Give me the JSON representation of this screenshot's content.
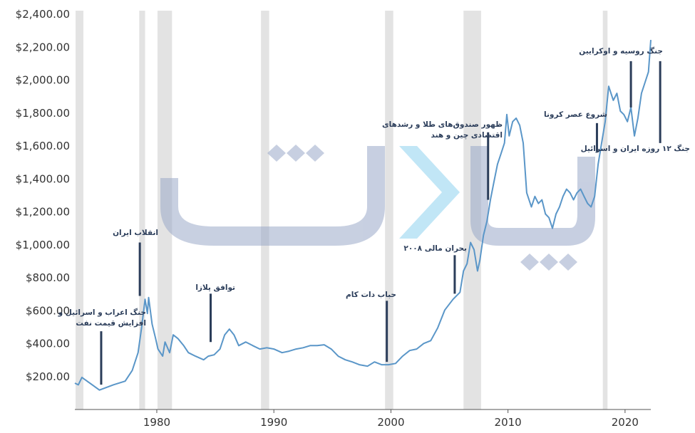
{
  "chart_data": {
    "type": "line",
    "color": "#5a96c8",
    "xlim": [
      1973,
      2022.2
    ],
    "xticks": [
      1980,
      1990,
      2000,
      2010,
      2020
    ],
    "ylim": [
      0,
      2400
    ],
    "yticks": [
      {
        "value": 200,
        "label": "$200.00"
      },
      {
        "value": 400,
        "label": "$400.00"
      },
      {
        "value": 600,
        "label": "$600.00"
      },
      {
        "value": 800,
        "label": "$800.00"
      },
      {
        "value": 1000,
        "label": "$1,000.00"
      },
      {
        "value": 1200,
        "label": "$1,200.00"
      },
      {
        "value": 1400,
        "label": "$1,400.00"
      },
      {
        "value": 1600,
        "label": "$1,600.00"
      },
      {
        "value": 1800,
        "label": "$1,800.00"
      },
      {
        "value": 2000,
        "label": "$2,000.00"
      },
      {
        "value": 2200,
        "label": "$2,200.00"
      },
      {
        "value": 2400,
        "label": "$2,400.00"
      }
    ],
    "shaded_ranges": [
      [
        1973.06,
        1973.73
      ],
      [
        1978.5,
        1979.0
      ],
      [
        1980.06,
        1981.3
      ],
      [
        1988.9,
        1989.6
      ],
      [
        1999.5,
        2000.2
      ],
      [
        2006.2,
        2007.7
      ],
      [
        2018.1,
        2018.5
      ]
    ],
    "x": [
      1973.0,
      1973.3,
      1973.6,
      1975.1,
      1976.3,
      1977.3,
      1977.9,
      1978.4,
      1978.7,
      1979.0,
      1979.2,
      1979.3,
      1979.6,
      1979.9,
      1980.1,
      1980.5,
      1980.7,
      1981.1,
      1981.4,
      1981.8,
      1982.3,
      1982.7,
      1983.3,
      1984.0,
      1984.4,
      1984.9,
      1985.4,
      1985.8,
      1986.2,
      1986.6,
      1987.0,
      1987.6,
      1988.2,
      1988.8,
      1989.4,
      1990.0,
      1990.7,
      1991.3,
      1991.9,
      1992.5,
      1993.1,
      1993.7,
      1994.3,
      1994.9,
      1995.5,
      1996.1,
      1996.7,
      1997.3,
      1998.0,
      1998.6,
      1999.2,
      1999.8,
      2000.4,
      2001.0,
      2001.6,
      2002.2,
      2002.8,
      2003.4,
      2004.0,
      2004.6,
      2005.3,
      2005.9,
      2006.2,
      2006.5,
      2006.8,
      2007.1,
      2007.4,
      2007.6,
      2007.9,
      2008.2,
      2008.5,
      2008.8,
      2009.1,
      2009.4,
      2009.7,
      2009.9,
      2010.1,
      2010.4,
      2010.7,
      2011.0,
      2011.3,
      2011.6,
      2012.0,
      2012.3,
      2012.6,
      2012.9,
      2013.2,
      2013.5,
      2013.8,
      2014.1,
      2014.4,
      2014.7,
      2015.0,
      2015.3,
      2015.6,
      2015.9,
      2016.2,
      2016.5,
      2016.8,
      2017.1,
      2017.4,
      2017.7,
      2018.0,
      2018.3,
      2018.6,
      2019.0,
      2019.3,
      2019.6,
      2019.9,
      2020.2,
      2020.5,
      2020.8,
      2021.1,
      2021.4,
      2021.7,
      2022.0,
      2022.2
    ],
    "values": [
      160,
      150,
      195,
      118,
      150,
      172,
      237,
      345,
      496,
      669,
      583,
      680,
      518,
      431,
      367,
      324,
      410,
      345,
      453,
      431,
      388,
      345,
      324,
      302,
      324,
      332,
      367,
      453,
      488,
      453,
      388,
      410,
      388,
      367,
      375,
      367,
      345,
      354,
      367,
      375,
      388,
      388,
      393,
      367,
      324,
      302,
      289,
      272,
      263,
      289,
      272,
      272,
      280,
      324,
      358,
      367,
      401,
      418,
      496,
      604,
      669,
      712,
      841,
      885,
      1014,
      971,
      841,
      906,
      1057,
      1143,
      1273,
      1381,
      1489,
      1553,
      1618,
      1791,
      1661,
      1748,
      1769,
      1726,
      1618,
      1316,
      1230,
      1294,
      1251,
      1273,
      1187,
      1165,
      1100,
      1187,
      1230,
      1294,
      1338,
      1316,
      1273,
      1316,
      1338,
      1294,
      1251,
      1230,
      1294,
      1489,
      1618,
      1748,
      1963,
      1877,
      1920,
      1812,
      1791,
      1748,
      1834,
      1661,
      1769,
      1920,
      1985,
      2050,
      2244
    ],
    "annotations": [
      {
        "lines": [
          "جنگ اعراب و اسرائیل و",
          "افزایش قیمت نفت"
        ],
        "x": 1975.25,
        "y1": 475,
        "y2": 151
      },
      {
        "lines": [
          "انقلاب ایران"
        ],
        "x": 1978.55,
        "y1": 1014,
        "y2": 690
      },
      {
        "lines": [
          "توافق پلازا"
        ],
        "x": 1984.6,
        "y1": 703,
        "y2": 410
      },
      {
        "lines": [
          "حباب دات کام"
        ],
        "x": 1999.65,
        "y1": 660,
        "y2": 289
      },
      {
        "lines": [
          "بحران مالی ۲۰۰۸"
        ],
        "x": 2005.45,
        "y1": 937,
        "y2": 703
      },
      {
        "lines": [
          "ظهور صندوق‌های طلا و رشدهای",
          "اقتصادی چین و هند"
        ],
        "x": 2008.3,
        "y1": 1683,
        "y2": 1273
      },
      {
        "lines": [
          "شروع عصر کرونا"
        ],
        "x": 2017.6,
        "y1": 1739,
        "y2": 1566
      },
      {
        "lines": [
          "جنگ روسیه و اوکرایین"
        ],
        "x": 2020.5,
        "y1": 2115,
        "y2": 1834
      },
      {
        "lines": [
          "جنگ ۱۲ روزه ایران و اسرائیل"
        ],
        "x": 2023.0,
        "y1": 2115,
        "y2": 1618
      }
    ]
  }
}
